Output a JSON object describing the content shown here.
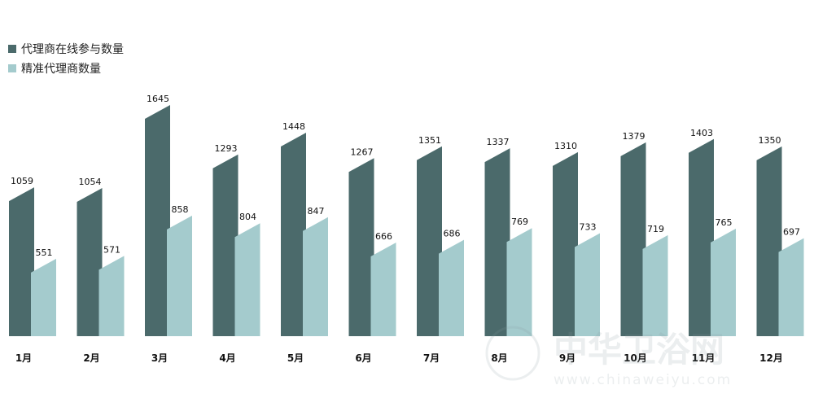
{
  "legend": {
    "items": [
      {
        "label": "代理商在线参与数量",
        "color": "#4b6a6b"
      },
      {
        "label": "精准代理商数量",
        "color": "#a4cbcd"
      }
    ]
  },
  "watermark": {
    "title": "中华卫浴网",
    "url": "www.chinaweiyu.com"
  },
  "chart_data": {
    "type": "bar",
    "categories": [
      "1月",
      "2月",
      "3月",
      "4月",
      "5月",
      "6月",
      "7月",
      "8月",
      "9月",
      "10月",
      "11月",
      "12月"
    ],
    "series": [
      {
        "name": "代理商在线参与数量",
        "values": [
          1059,
          1054,
          1645,
          1293,
          1448,
          1267,
          1351,
          1337,
          1310,
          1379,
          1403,
          1350
        ],
        "color": "#4b6a6b"
      },
      {
        "name": "精准代理商数量",
        "values": [
          551,
          571,
          858,
          804,
          847,
          666,
          686,
          769,
          733,
          719,
          765,
          697
        ],
        "color": "#a4cbcd"
      }
    ],
    "ylim": [
      0,
      1645
    ],
    "grid": false,
    "legend_position": "top-left"
  }
}
